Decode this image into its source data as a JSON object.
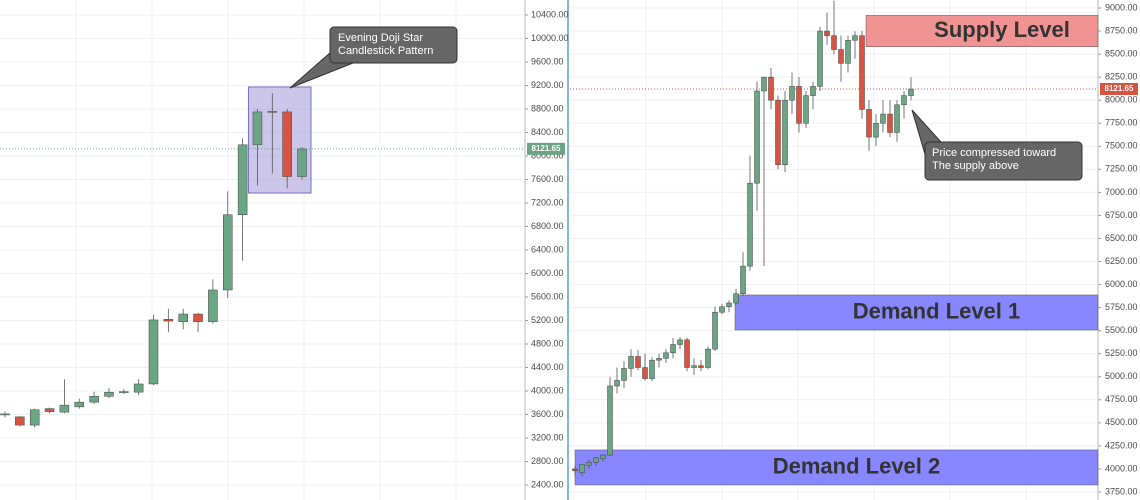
{
  "chart_data": [
    {
      "type": "candlestick",
      "ylim": [
        2145,
        10655
      ],
      "yticks": [
        {
          "value": 2400,
          "label": "2400.00"
        },
        {
          "value": 2800,
          "label": "2800.00"
        },
        {
          "value": 3200,
          "label": "3200.00"
        },
        {
          "value": 3600,
          "label": "3600.00"
        },
        {
          "value": 4000,
          "label": "4000.00"
        },
        {
          "value": 4400,
          "label": "4400.00"
        },
        {
          "value": 4800,
          "label": "4800.00"
        },
        {
          "value": 5200,
          "label": "5200.00"
        },
        {
          "value": 5600,
          "label": "5600.00"
        },
        {
          "value": 6000,
          "label": "6000.00"
        },
        {
          "value": 6400,
          "label": "6400.00"
        },
        {
          "value": 6800,
          "label": "6800.00"
        },
        {
          "value": 7200,
          "label": "7200.00"
        },
        {
          "value": 7600,
          "label": "7600.00"
        },
        {
          "value": 8000,
          "label": "8000.00"
        },
        {
          "value": 8400,
          "label": "8400.00"
        },
        {
          "value": 8800,
          "label": "8800.00"
        },
        {
          "value": 9200,
          "label": "9200.00"
        },
        {
          "value": 9600,
          "label": "9600.00"
        },
        {
          "value": 10000,
          "label": "10000.00"
        },
        {
          "value": 10400,
          "label": "10400.00"
        }
      ],
      "up_color": "#6ba583",
      "down_color": "#d75442",
      "open": [
        3600,
        3560,
        3420,
        3700,
        3640,
        3730,
        3810,
        3910,
        3980,
        3980,
        4120,
        5220,
        5180,
        5310,
        5180,
        5720,
        7000,
        8190,
        8750,
        8750,
        7650
      ],
      "high": [
        3650,
        3570,
        3700,
        3720,
        4200,
        3870,
        3990,
        4050,
        4030,
        4200,
        5300,
        5400,
        5400,
        5330,
        5900,
        7400,
        8300,
        8800,
        9070,
        8800,
        8150
      ],
      "low": [
        3550,
        3400,
        3380,
        3620,
        3620,
        3700,
        3780,
        3880,
        3950,
        3930,
        4100,
        5000,
        5050,
        5000,
        5150,
        5580,
        6220,
        7500,
        7700,
        7450,
        7600
      ],
      "close": [
        3610,
        3420,
        3680,
        3650,
        3760,
        3810,
        3910,
        3980,
        3990,
        4120,
        5210,
        5190,
        5310,
        5180,
        5720,
        7000,
        8190,
        8750,
        8760,
        7650,
        8120
      ],
      "last_price": 8121.65,
      "highlight": {
        "low": 7370,
        "high": 9175,
        "color": "#9a8fd6"
      },
      "annotation": [
        "Evening Doji Star",
        "Candlestick Pattern"
      ]
    },
    {
      "type": "candlestick",
      "ylim": [
        3663,
        9087
      ],
      "yticks": [
        {
          "value": 3750,
          "label": "3750.00"
        },
        {
          "value": 4000,
          "label": "4000.00"
        },
        {
          "value": 4250,
          "label": "4250.00"
        },
        {
          "value": 4500,
          "label": "4500.00"
        },
        {
          "value": 4750,
          "label": "4750.00"
        },
        {
          "value": 5000,
          "label": "5000.00"
        },
        {
          "value": 5250,
          "label": "5250.00"
        },
        {
          "value": 5500,
          "label": "5500.00"
        },
        {
          "value": 5750,
          "label": "5750.00"
        },
        {
          "value": 6000,
          "label": "6000.00"
        },
        {
          "value": 6250,
          "label": "6250.00"
        },
        {
          "value": 6500,
          "label": "6500.00"
        },
        {
          "value": 6750,
          "label": "6750.00"
        },
        {
          "value": 7000,
          "label": "7000.00"
        },
        {
          "value": 7250,
          "label": "7250.00"
        },
        {
          "value": 7500,
          "label": "7500.00"
        },
        {
          "value": 7750,
          "label": "7750.00"
        },
        {
          "value": 8000,
          "label": "8000.00"
        },
        {
          "value": 8250,
          "label": "8250.00"
        },
        {
          "value": 8500,
          "label": "8500.00"
        },
        {
          "value": 8750,
          "label": "8750.00"
        },
        {
          "value": 9000,
          "label": "9000.00"
        }
      ],
      "up_color": "#6ba583",
      "down_color": "#d75442",
      "open": [
        4000,
        3960,
        4040,
        4070,
        4110,
        4150,
        4900,
        4960,
        5090,
        5220,
        5100,
        4980,
        5180,
        5200,
        5260,
        5350,
        5400,
        5100,
        5120,
        5100,
        5300,
        5700,
        5760,
        5800,
        5900,
        6200,
        7100,
        8100,
        8250,
        8000,
        7300,
        8000,
        8150,
        7750,
        8050,
        8150,
        8750,
        8700,
        8550,
        8400,
        8650,
        8700,
        7900,
        7600,
        7750,
        7850,
        7650,
        7950,
        8050
      ],
      "high": [
        4030,
        4050,
        4100,
        4130,
        4160,
        5000,
        5100,
        5170,
        5300,
        5290,
        5250,
        5210,
        5250,
        5300,
        5420,
        5430,
        5420,
        5200,
        5180,
        5330,
        5760,
        5790,
        5830,
        5950,
        6350,
        7400,
        8200,
        8250,
        8350,
        8050,
        8100,
        8300,
        8250,
        8100,
        8200,
        8800,
        8950,
        9080,
        8700,
        8700,
        8750,
        8750,
        8000,
        7850,
        8000,
        8000,
        8000,
        8100,
        8250
      ],
      "low": [
        3930,
        3920,
        4000,
        4030,
        4080,
        4140,
        4820,
        4880,
        5000,
        5070,
        4960,
        4950,
        5100,
        5150,
        5200,
        5300,
        5060,
        5020,
        5060,
        5080,
        5280,
        5680,
        5700,
        5780,
        5880,
        6150,
        6800,
        6200,
        7900,
        7250,
        7220,
        7850,
        7650,
        7700,
        7900,
        8100,
        8600,
        8500,
        8200,
        8300,
        8450,
        7800,
        7450,
        7500,
        7650,
        7600,
        7550,
        7800,
        8000
      ],
      "close": [
        3980,
        4050,
        4070,
        4120,
        4150,
        4900,
        4960,
        5090,
        5220,
        5100,
        4980,
        5180,
        5200,
        5260,
        5350,
        5400,
        5100,
        5120,
        5100,
        5300,
        5700,
        5760,
        5800,
        5900,
        6200,
        7100,
        8100,
        8250,
        8000,
        7300,
        8000,
        8150,
        7750,
        8050,
        8150,
        8750,
        8700,
        8550,
        8400,
        8650,
        8700,
        7900,
        7600,
        7750,
        7850,
        7650,
        7950,
        8050,
        8120
      ],
      "last_price": 8121.65,
      "zones": [
        {
          "label": "Supply Level",
          "low": 8580,
          "high": 8920,
          "color": "#f08080"
        },
        {
          "label": "Demand Level 1",
          "low": 5507,
          "high": 5887,
          "color": "#7272ff"
        },
        {
          "label": "Demand Level 2",
          "low": 3826,
          "high": 4206,
          "color": "#7272ff"
        }
      ],
      "annotation": [
        "Price compressed toward",
        "The supply above"
      ]
    }
  ]
}
